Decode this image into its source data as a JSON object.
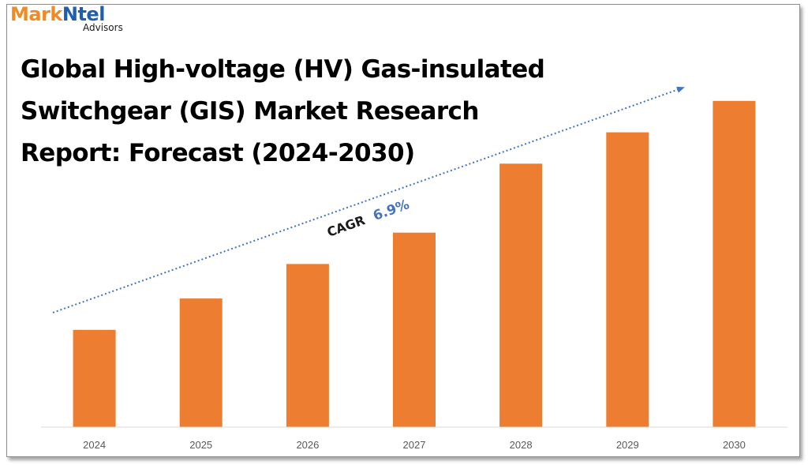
{
  "brand": {
    "name_part1": "Mark",
    "name_part2": "Ntel",
    "subtitle": "Advisors"
  },
  "title_lines": [
    "Global High-voltage (HV) Gas-insulated",
    "Switchgear (GIS) Market Research",
    "Report: Forecast (2024-2030)"
  ],
  "annotation": {
    "label": "CAGR",
    "value": "6.9%"
  },
  "colors": {
    "bar": "#ed7d31",
    "trend_arrow": "#4472c4",
    "axis": "#d9d9d9",
    "brand_orange": "#f08a24",
    "brand_blue": "#1f5fae"
  },
  "chart_data": {
    "type": "bar",
    "title": "Global High-voltage (HV) Gas-insulated Switchgear (GIS) Market Research Report: Forecast (2024-2030)",
    "categories": [
      "2024",
      "2025",
      "2026",
      "2027",
      "2028",
      "2029",
      "2030"
    ],
    "values": [
      31,
      41,
      52,
      62,
      84,
      94,
      104
    ],
    "ylim": [
      0,
      110
    ],
    "grid": false,
    "legend": "none",
    "value_axis_shown": false
  }
}
